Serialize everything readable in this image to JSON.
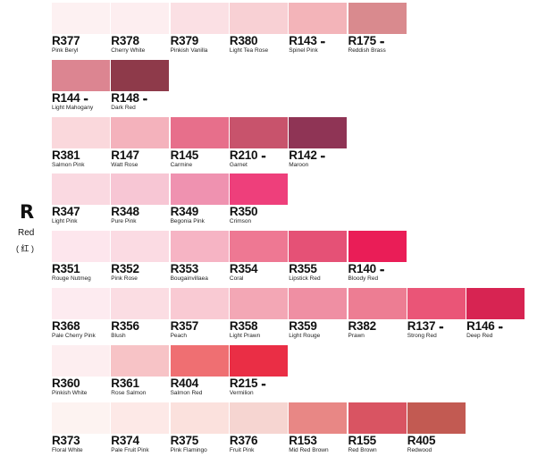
{
  "family": {
    "letter": "R",
    "name": "Red",
    "cn": "( 红 )"
  },
  "rows": [
    [
      {
        "code": "R377",
        "name": "Pink Beryl",
        "color": "#fdf1f2",
        "dots": ""
      },
      {
        "code": "R378",
        "name": "Cherry White",
        "color": "#fdeef0",
        "dots": ""
      },
      {
        "code": "R379",
        "name": "Pinkish Vanilla",
        "color": "#fbe0e4",
        "dots": ""
      },
      {
        "code": "R380",
        "name": "Light Tea Rose",
        "color": "#f8d0d4",
        "dots": ""
      },
      {
        "code": "R143",
        "name": "Spinel Pink",
        "color": "#f3b4b9",
        "dots": "••"
      },
      {
        "code": "R175",
        "name": "Reddish Brass",
        "color": "#d98a8e",
        "dots": "••"
      }
    ],
    [
      {
        "code": "R144",
        "name": "Light Mahogany",
        "color": "#dc8591",
        "dots": "••"
      },
      {
        "code": "R148",
        "name": "Dark Red",
        "color": "#8e3a4a",
        "dots": "••"
      }
    ],
    [
      {
        "code": "R381",
        "name": "Salmon Pink",
        "color": "#fad8dc",
        "dots": ""
      },
      {
        "code": "R147",
        "name": "Watt Rose",
        "color": "#f4b2bc",
        "dots": ""
      },
      {
        "code": "R145",
        "name": "Carmine",
        "color": "#e76f8b",
        "dots": ""
      },
      {
        "code": "R210",
        "name": "Garnet",
        "color": "#c8536c",
        "dots": "••"
      },
      {
        "code": "R142",
        "name": "Maroon",
        "color": "#8f3455",
        "dots": "••"
      }
    ],
    [
      {
        "code": "R347",
        "name": "Light Pink",
        "color": "#fad9e1",
        "dots": ""
      },
      {
        "code": "R348",
        "name": "Pure Pink",
        "color": "#f7c6d4",
        "dots": ""
      },
      {
        "code": "R349",
        "name": "Begonia Pink",
        "color": "#ef92b0",
        "dots": ""
      },
      {
        "code": "R350",
        "name": "Crimson",
        "color": "#ee3f7b",
        "dots": ""
      }
    ],
    [
      {
        "code": "R351",
        "name": "Rouge Nutmeg",
        "color": "#fde6ed",
        "dots": ""
      },
      {
        "code": "R352",
        "name": "Pink Rose",
        "color": "#fbdbe3",
        "dots": ""
      },
      {
        "code": "R353",
        "name": "Bougainvillaea",
        "color": "#f6b4c4",
        "dots": ""
      },
      {
        "code": "R354",
        "name": "Coral",
        "color": "#ee7893",
        "dots": ""
      },
      {
        "code": "R355",
        "name": "Lipstick Red",
        "color": "#e55176",
        "dots": ""
      },
      {
        "code": "R140",
        "name": "Bloody Red",
        "color": "#ea1d57",
        "dots": "••"
      }
    ],
    [
      {
        "code": "R368",
        "name": "Pale Cherry Pink",
        "color": "#fdebf0",
        "dots": ""
      },
      {
        "code": "R356",
        "name": "Blush",
        "color": "#fbdde3",
        "dots": ""
      },
      {
        "code": "R357",
        "name": "Peach",
        "color": "#f9cad3",
        "dots": ""
      },
      {
        "code": "R358",
        "name": "Light Prawn",
        "color": "#f3a7b5",
        "dots": ""
      },
      {
        "code": "R359",
        "name": "Light Rouge",
        "color": "#ef8fa3",
        "dots": ""
      },
      {
        "code": "R382",
        "name": "Prawn",
        "color": "#ed7d93",
        "dots": ""
      },
      {
        "code": "R137",
        "name": "Strong Red",
        "color": "#ea5577",
        "dots": "••"
      },
      {
        "code": "R146",
        "name": "Deep Red",
        "color": "#d72452",
        "dots": "••"
      }
    ],
    [
      {
        "code": "R360",
        "name": "Pinkish White",
        "color": "#fdeef0",
        "dots": ""
      },
      {
        "code": "R361",
        "name": "Rose Salmon",
        "color": "#f7c3c6",
        "dots": ""
      },
      {
        "code": "R404",
        "name": "Salmon Red",
        "color": "#ef6f72",
        "dots": ""
      },
      {
        "code": "R215",
        "name": "Vermilion",
        "color": "#ea2e45",
        "dots": "••"
      }
    ],
    [
      {
        "code": "R373",
        "name": "Floral White",
        "color": "#fdf3f1",
        "dots": ""
      },
      {
        "code": "R374",
        "name": "Pale Fruit Pink",
        "color": "#fde9e7",
        "dots": ""
      },
      {
        "code": "R375",
        "name": "Pink Flamingo",
        "color": "#fbe1dd",
        "dots": ""
      },
      {
        "code": "R376",
        "name": "Fruit Pink",
        "color": "#f6d5d1",
        "dots": ""
      },
      {
        "code": "R153",
        "name": "Mid Red Brown",
        "color": "#e88785",
        "dots": ""
      },
      {
        "code": "R155",
        "name": "Red Brown",
        "color": "#d95462",
        "dots": ""
      },
      {
        "code": "R405",
        "name": "Redwood",
        "color": "#c25a52",
        "dots": ""
      }
    ]
  ]
}
